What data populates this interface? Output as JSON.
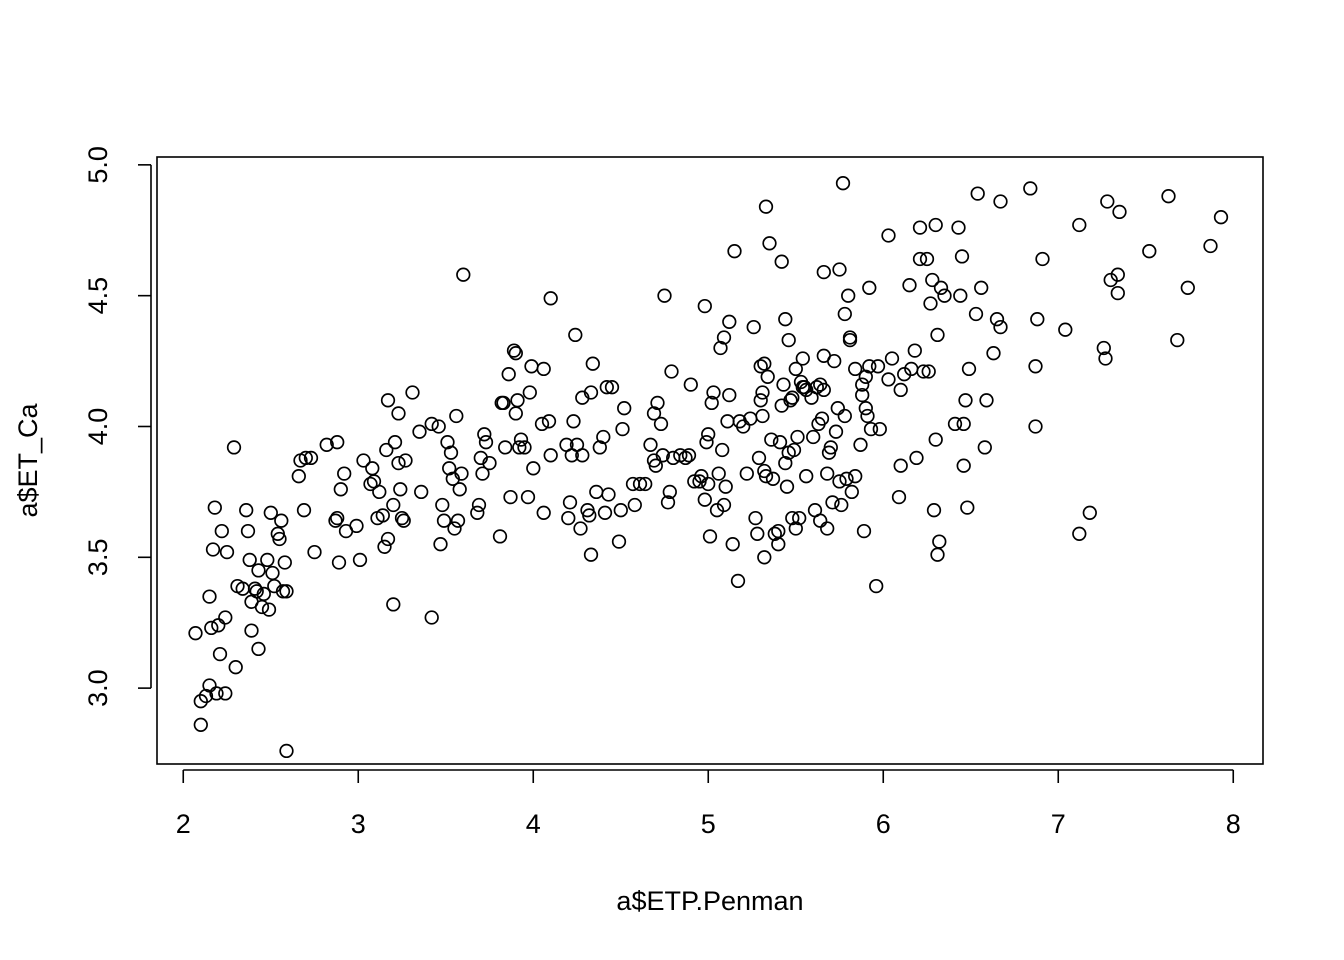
{
  "chart_data": {
    "type": "scatter",
    "title": "",
    "xlabel": "a$ETP.Penman",
    "ylabel": "a$ET_Ca",
    "xlim": [
      1.85,
      8.17
    ],
    "ylim": [
      2.71,
      5.03
    ],
    "xticks": [
      2,
      3,
      4,
      5,
      6,
      7,
      8
    ],
    "yticks": [
      3.0,
      3.5,
      4.0,
      4.5,
      5.0
    ],
    "xtick_labels": [
      "2",
      "3",
      "4",
      "5",
      "6",
      "7",
      "8"
    ],
    "ytick_labels": [
      "3.0",
      "3.5",
      "4.0",
      "4.5",
      "5.0"
    ],
    "grid": false,
    "legend": "none",
    "marker": "open-circle",
    "color": "#000000",
    "points": [
      [
        2.07,
        3.21
      ],
      [
        2.1,
        2.86
      ],
      [
        2.1,
        2.95
      ],
      [
        2.13,
        2.97
      ],
      [
        2.15,
        3.01
      ],
      [
        2.15,
        3.35
      ],
      [
        2.16,
        3.23
      ],
      [
        2.17,
        3.53
      ],
      [
        2.18,
        3.69
      ],
      [
        2.19,
        2.98
      ],
      [
        2.2,
        3.24
      ],
      [
        2.21,
        3.13
      ],
      [
        2.22,
        3.6
      ],
      [
        2.24,
        2.98
      ],
      [
        2.24,
        3.27
      ],
      [
        2.25,
        3.52
      ],
      [
        2.29,
        3.92
      ],
      [
        2.3,
        3.08
      ],
      [
        2.31,
        3.39
      ],
      [
        2.34,
        3.38
      ],
      [
        2.36,
        3.68
      ],
      [
        2.37,
        3.6
      ],
      [
        2.38,
        3.49
      ],
      [
        2.39,
        3.22
      ],
      [
        2.39,
        3.33
      ],
      [
        2.41,
        3.38
      ],
      [
        2.42,
        3.37
      ],
      [
        2.43,
        3.45
      ],
      [
        2.43,
        3.15
      ],
      [
        2.45,
        3.31
      ],
      [
        2.46,
        3.36
      ],
      [
        2.48,
        3.49
      ],
      [
        2.49,
        3.3
      ],
      [
        2.5,
        3.67
      ],
      [
        2.51,
        3.44
      ],
      [
        2.52,
        3.39
      ],
      [
        2.54,
        3.59
      ],
      [
        2.55,
        3.57
      ],
      [
        2.56,
        3.64
      ],
      [
        2.57,
        3.37
      ],
      [
        2.58,
        3.48
      ],
      [
        2.59,
        3.37
      ],
      [
        2.59,
        2.76
      ],
      [
        2.66,
        3.81
      ],
      [
        2.67,
        3.87
      ],
      [
        2.69,
        3.68
      ],
      [
        2.7,
        3.88
      ],
      [
        2.73,
        3.88
      ],
      [
        2.75,
        3.52
      ],
      [
        2.82,
        3.93
      ],
      [
        2.87,
        3.64
      ],
      [
        2.88,
        3.94
      ],
      [
        2.88,
        3.65
      ],
      [
        2.89,
        3.48
      ],
      [
        2.9,
        3.76
      ],
      [
        2.92,
        3.82
      ],
      [
        2.93,
        3.6
      ],
      [
        2.99,
        3.62
      ],
      [
        3.01,
        3.49
      ],
      [
        3.03,
        3.87
      ],
      [
        3.07,
        3.78
      ],
      [
        3.08,
        3.84
      ],
      [
        3.09,
        3.79
      ],
      [
        3.11,
        3.65
      ],
      [
        3.12,
        3.75
      ],
      [
        3.14,
        3.66
      ],
      [
        3.15,
        3.54
      ],
      [
        3.16,
        3.91
      ],
      [
        3.17,
        4.1
      ],
      [
        3.17,
        3.57
      ],
      [
        3.2,
        3.32
      ],
      [
        3.2,
        3.7
      ],
      [
        3.21,
        3.94
      ],
      [
        3.23,
        4.05
      ],
      [
        3.23,
        3.86
      ],
      [
        3.24,
        3.76
      ],
      [
        3.25,
        3.65
      ],
      [
        3.26,
        3.64
      ],
      [
        3.27,
        3.87
      ],
      [
        3.31,
        4.13
      ],
      [
        3.35,
        3.98
      ],
      [
        3.36,
        3.75
      ],
      [
        3.42,
        4.01
      ],
      [
        3.42,
        3.27
      ],
      [
        3.46,
        4.0
      ],
      [
        3.47,
        3.55
      ],
      [
        3.48,
        3.7
      ],
      [
        3.49,
        3.64
      ],
      [
        3.51,
        3.94
      ],
      [
        3.52,
        3.84
      ],
      [
        3.53,
        3.9
      ],
      [
        3.54,
        3.8
      ],
      [
        3.55,
        3.61
      ],
      [
        3.56,
        4.04
      ],
      [
        3.57,
        3.64
      ],
      [
        3.58,
        3.76
      ],
      [
        3.59,
        3.82
      ],
      [
        3.6,
        4.58
      ],
      [
        3.68,
        3.67
      ],
      [
        3.69,
        3.7
      ],
      [
        3.7,
        3.88
      ],
      [
        3.71,
        3.82
      ],
      [
        3.72,
        3.97
      ],
      [
        3.73,
        3.94
      ],
      [
        3.75,
        3.86
      ],
      [
        3.81,
        3.58
      ],
      [
        3.82,
        4.09
      ],
      [
        3.83,
        4.09
      ],
      [
        3.84,
        3.92
      ],
      [
        3.86,
        4.2
      ],
      [
        3.87,
        3.73
      ],
      [
        3.89,
        4.29
      ],
      [
        3.9,
        4.05
      ],
      [
        3.9,
        4.28
      ],
      [
        3.91,
        4.1
      ],
      [
        3.92,
        3.92
      ],
      [
        3.93,
        3.95
      ],
      [
        3.95,
        3.92
      ],
      [
        3.97,
        3.73
      ],
      [
        3.98,
        4.13
      ],
      [
        3.99,
        4.23
      ],
      [
        4.0,
        3.84
      ],
      [
        4.05,
        4.01
      ],
      [
        4.06,
        3.67
      ],
      [
        4.06,
        4.22
      ],
      [
        4.09,
        4.02
      ],
      [
        4.1,
        3.89
      ],
      [
        4.1,
        4.49
      ],
      [
        4.19,
        3.93
      ],
      [
        4.2,
        3.65
      ],
      [
        4.21,
        3.71
      ],
      [
        4.22,
        3.89
      ],
      [
        4.23,
        4.02
      ],
      [
        4.24,
        4.35
      ],
      [
        4.25,
        3.93
      ],
      [
        4.27,
        3.61
      ],
      [
        4.28,
        3.89
      ],
      [
        4.28,
        4.11
      ],
      [
        4.31,
        3.68
      ],
      [
        4.32,
        3.66
      ],
      [
        4.33,
        4.13
      ],
      [
        4.33,
        3.51
      ],
      [
        4.34,
        4.24
      ],
      [
        4.36,
        3.75
      ],
      [
        4.38,
        3.92
      ],
      [
        4.4,
        3.96
      ],
      [
        4.41,
        3.67
      ],
      [
        4.42,
        4.15
      ],
      [
        4.43,
        3.74
      ],
      [
        4.45,
        4.15
      ],
      [
        4.49,
        3.56
      ],
      [
        4.5,
        3.68
      ],
      [
        4.51,
        3.99
      ],
      [
        4.52,
        4.07
      ],
      [
        4.57,
        3.78
      ],
      [
        4.58,
        3.7
      ],
      [
        4.61,
        3.78
      ],
      [
        4.64,
        3.78
      ],
      [
        4.67,
        3.93
      ],
      [
        4.69,
        4.05
      ],
      [
        4.69,
        3.87
      ],
      [
        4.7,
        3.85
      ],
      [
        4.71,
        4.09
      ],
      [
        4.73,
        4.01
      ],
      [
        4.74,
        3.89
      ],
      [
        4.75,
        4.5
      ],
      [
        4.77,
        3.71
      ],
      [
        4.78,
        3.75
      ],
      [
        4.79,
        4.21
      ],
      [
        4.8,
        3.88
      ],
      [
        4.84,
        3.89
      ],
      [
        4.87,
        3.88
      ],
      [
        4.89,
        3.89
      ],
      [
        4.9,
        4.16
      ],
      [
        4.92,
        3.79
      ],
      [
        4.95,
        3.79
      ],
      [
        4.96,
        3.81
      ],
      [
        4.98,
        4.46
      ],
      [
        4.98,
        3.72
      ],
      [
        4.99,
        3.94
      ],
      [
        5.0,
        3.97
      ],
      [
        5.0,
        3.78
      ],
      [
        5.01,
        3.58
      ],
      [
        5.02,
        4.09
      ],
      [
        5.03,
        4.13
      ],
      [
        5.05,
        3.68
      ],
      [
        5.06,
        3.82
      ],
      [
        5.07,
        4.3
      ],
      [
        5.08,
        3.91
      ],
      [
        5.09,
        4.34
      ],
      [
        5.09,
        3.7
      ],
      [
        5.1,
        3.77
      ],
      [
        5.11,
        4.02
      ],
      [
        5.12,
        4.12
      ],
      [
        5.12,
        4.4
      ],
      [
        5.14,
        3.55
      ],
      [
        5.15,
        4.67
      ],
      [
        5.17,
        3.41
      ],
      [
        5.18,
        4.02
      ],
      [
        5.2,
        4.0
      ],
      [
        5.22,
        3.82
      ],
      [
        5.24,
        4.03
      ],
      [
        5.26,
        4.38
      ],
      [
        5.27,
        3.65
      ],
      [
        5.28,
        3.59
      ],
      [
        5.29,
        3.88
      ],
      [
        5.3,
        4.1
      ],
      [
        5.3,
        4.23
      ],
      [
        5.31,
        4.13
      ],
      [
        5.31,
        4.04
      ],
      [
        5.32,
        3.83
      ],
      [
        5.32,
        4.24
      ],
      [
        5.32,
        3.5
      ],
      [
        5.33,
        3.81
      ],
      [
        5.33,
        4.84
      ],
      [
        5.34,
        4.19
      ],
      [
        5.35,
        4.7
      ],
      [
        5.36,
        3.95
      ],
      [
        5.37,
        3.8
      ],
      [
        5.38,
        3.59
      ],
      [
        5.4,
        3.55
      ],
      [
        5.4,
        3.6
      ],
      [
        5.41,
        3.94
      ],
      [
        5.42,
        4.63
      ],
      [
        5.42,
        4.08
      ],
      [
        5.43,
        4.16
      ],
      [
        5.44,
        3.86
      ],
      [
        5.44,
        4.41
      ],
      [
        5.45,
        3.77
      ],
      [
        5.46,
        4.33
      ],
      [
        5.46,
        3.9
      ],
      [
        5.47,
        4.1
      ],
      [
        5.48,
        3.65
      ],
      [
        5.48,
        4.11
      ],
      [
        5.49,
        3.91
      ],
      [
        5.5,
        4.22
      ],
      [
        5.5,
        3.61
      ],
      [
        5.51,
        3.96
      ],
      [
        5.52,
        3.65
      ],
      [
        5.53,
        4.17
      ],
      [
        5.54,
        4.15
      ],
      [
        5.54,
        4.26
      ],
      [
        5.55,
        4.15
      ],
      [
        5.56,
        4.14
      ],
      [
        5.56,
        3.81
      ],
      [
        5.59,
        4.11
      ],
      [
        5.6,
        3.96
      ],
      [
        5.61,
        3.68
      ],
      [
        5.62,
        4.15
      ],
      [
        5.63,
        4.01
      ],
      [
        5.64,
        4.16
      ],
      [
        5.64,
        3.64
      ],
      [
        5.65,
        4.03
      ],
      [
        5.66,
        4.27
      ],
      [
        5.66,
        4.14
      ],
      [
        5.66,
        4.59
      ],
      [
        5.68,
        3.82
      ],
      [
        5.68,
        3.61
      ],
      [
        5.69,
        3.9
      ],
      [
        5.7,
        3.92
      ],
      [
        5.71,
        3.71
      ],
      [
        5.72,
        4.25
      ],
      [
        5.73,
        3.98
      ],
      [
        5.74,
        4.07
      ],
      [
        5.75,
        4.6
      ],
      [
        5.75,
        3.79
      ],
      [
        5.76,
        3.7
      ],
      [
        5.77,
        4.93
      ],
      [
        5.78,
        4.43
      ],
      [
        5.78,
        4.04
      ],
      [
        5.79,
        3.8
      ],
      [
        5.8,
        4.5
      ],
      [
        5.81,
        4.33
      ],
      [
        5.81,
        4.34
      ],
      [
        5.82,
        3.75
      ],
      [
        5.84,
        3.81
      ],
      [
        5.84,
        4.22
      ],
      [
        5.87,
        3.93
      ],
      [
        5.88,
        4.16
      ],
      [
        5.88,
        4.12
      ],
      [
        5.89,
        3.6
      ],
      [
        5.9,
        4.07
      ],
      [
        5.9,
        4.19
      ],
      [
        5.91,
        4.04
      ],
      [
        5.92,
        4.53
      ],
      [
        5.92,
        4.23
      ],
      [
        5.93,
        3.99
      ],
      [
        5.96,
        3.39
      ],
      [
        5.97,
        4.23
      ],
      [
        5.98,
        3.99
      ],
      [
        6.03,
        4.73
      ],
      [
        6.03,
        4.18
      ],
      [
        6.05,
        4.26
      ],
      [
        6.09,
        3.73
      ],
      [
        6.1,
        3.85
      ],
      [
        6.1,
        4.14
      ],
      [
        6.12,
        4.2
      ],
      [
        6.15,
        4.54
      ],
      [
        6.16,
        4.22
      ],
      [
        6.18,
        4.29
      ],
      [
        6.19,
        3.88
      ],
      [
        6.21,
        4.76
      ],
      [
        6.21,
        4.64
      ],
      [
        6.23,
        4.21
      ],
      [
        6.25,
        4.64
      ],
      [
        6.26,
        4.21
      ],
      [
        6.27,
        4.47
      ],
      [
        6.28,
        4.56
      ],
      [
        6.29,
        3.68
      ],
      [
        6.3,
        3.95
      ],
      [
        6.3,
        4.77
      ],
      [
        6.31,
        3.51
      ],
      [
        6.31,
        4.35
      ],
      [
        6.32,
        3.56
      ],
      [
        6.33,
        4.53
      ],
      [
        6.35,
        4.5
      ],
      [
        6.41,
        4.01
      ],
      [
        6.43,
        4.76
      ],
      [
        6.44,
        4.5
      ],
      [
        6.45,
        4.65
      ],
      [
        6.46,
        4.01
      ],
      [
        6.46,
        3.85
      ],
      [
        6.47,
        4.1
      ],
      [
        6.48,
        3.69
      ],
      [
        6.49,
        4.22
      ],
      [
        6.53,
        4.43
      ],
      [
        6.54,
        4.89
      ],
      [
        6.56,
        4.53
      ],
      [
        6.58,
        3.92
      ],
      [
        6.59,
        4.1
      ],
      [
        6.63,
        4.28
      ],
      [
        6.65,
        4.41
      ],
      [
        6.67,
        4.38
      ],
      [
        6.67,
        4.86
      ],
      [
        6.84,
        4.91
      ],
      [
        6.87,
        4.23
      ],
      [
        6.87,
        4.0
      ],
      [
        6.88,
        4.41
      ],
      [
        6.91,
        4.64
      ],
      [
        7.04,
        4.37
      ],
      [
        7.12,
        3.59
      ],
      [
        7.12,
        4.77
      ],
      [
        7.18,
        3.67
      ],
      [
        7.26,
        4.3
      ],
      [
        7.27,
        4.26
      ],
      [
        7.28,
        4.86
      ],
      [
        7.3,
        4.56
      ],
      [
        7.34,
        4.58
      ],
      [
        7.34,
        4.51
      ],
      [
        7.35,
        4.82
      ],
      [
        7.52,
        4.67
      ],
      [
        7.63,
        4.88
      ],
      [
        7.68,
        4.33
      ],
      [
        7.74,
        4.53
      ],
      [
        7.87,
        4.69
      ],
      [
        7.93,
        4.8
      ]
    ]
  }
}
